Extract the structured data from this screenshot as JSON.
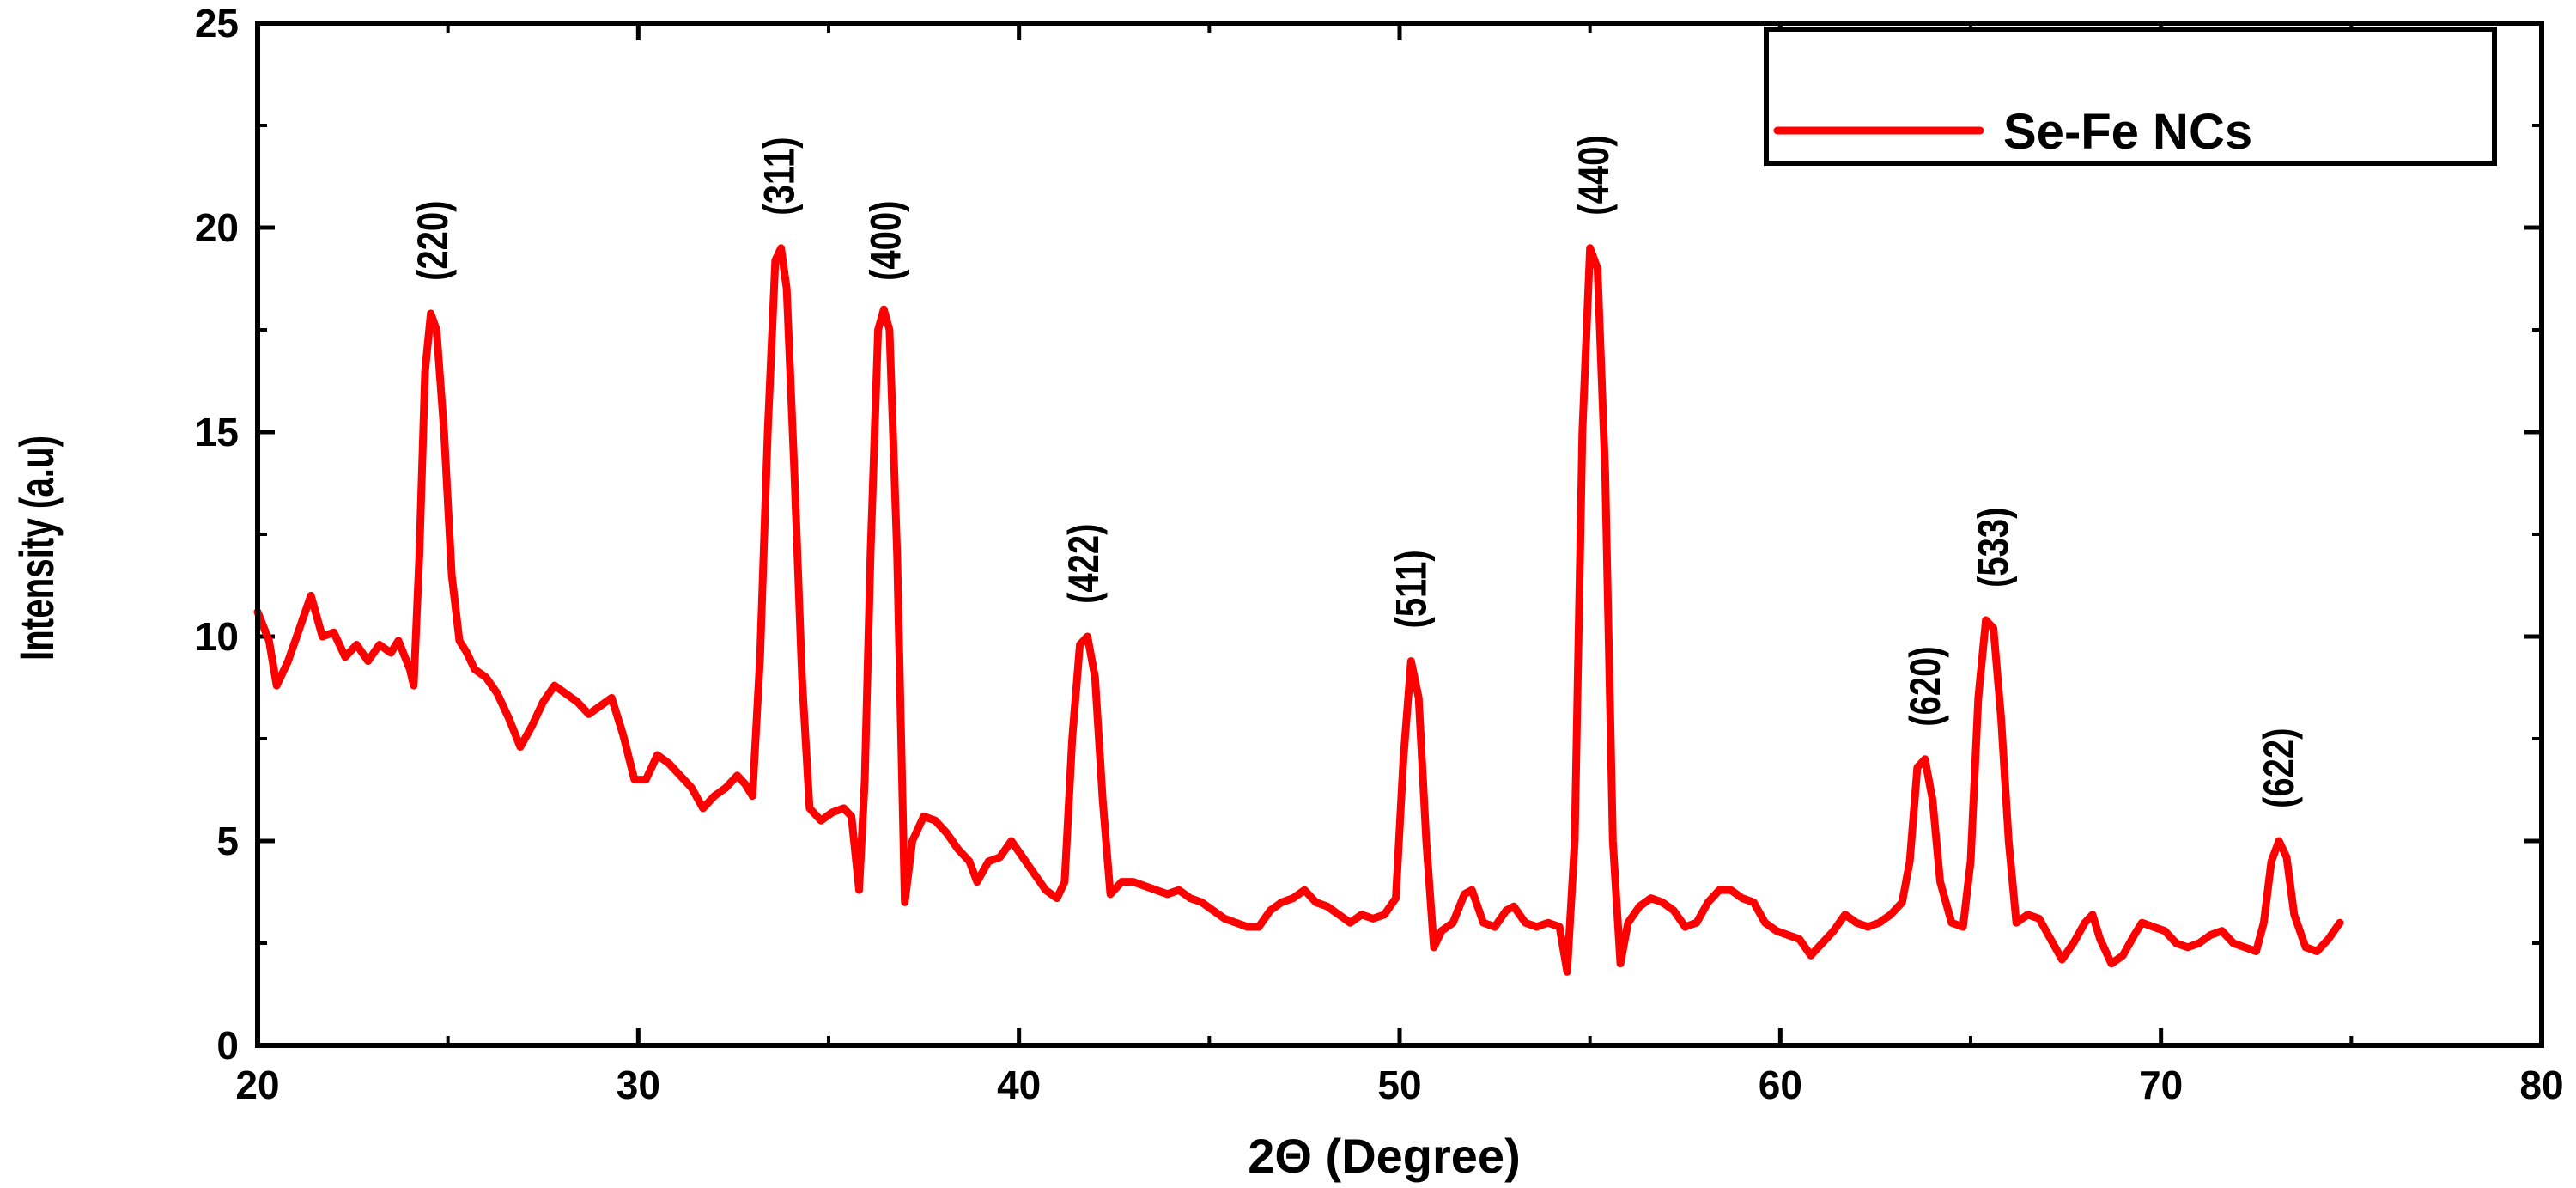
{
  "chart_data": {
    "type": "line",
    "title": "",
    "xlabel": "2Θ (Degree)",
    "ylabel": "Intensity (a.u)",
    "xlim": [
      20,
      80
    ],
    "ylim": [
      0,
      25
    ],
    "xticks": [
      "20",
      "30",
      "40",
      "50",
      "60",
      "70",
      "80"
    ],
    "yticks": [
      "0",
      "5",
      "10",
      "15",
      "20",
      "25"
    ],
    "grid": false,
    "legend": {
      "position": "top-right",
      "entries": [
        "Se-Fe NCs"
      ]
    },
    "series": [
      {
        "name": "Se-Fe NCs",
        "color": "#ff0000",
        "points": [
          [
            20.0,
            10.6
          ],
          [
            20.3,
            9.9
          ],
          [
            20.5,
            8.8
          ],
          [
            20.8,
            9.4
          ],
          [
            21.1,
            10.2
          ],
          [
            21.4,
            11.0
          ],
          [
            21.7,
            10.0
          ],
          [
            22.0,
            10.1
          ],
          [
            22.3,
            9.5
          ],
          [
            22.6,
            9.8
          ],
          [
            22.9,
            9.4
          ],
          [
            23.2,
            9.8
          ],
          [
            23.5,
            9.6
          ],
          [
            23.7,
            9.9
          ],
          [
            24.0,
            9.2
          ],
          [
            24.1,
            8.8
          ],
          [
            24.25,
            12.0
          ],
          [
            24.4,
            16.5
          ],
          [
            24.55,
            17.9
          ],
          [
            24.7,
            17.5
          ],
          [
            24.9,
            15.0
          ],
          [
            25.1,
            11.5
          ],
          [
            25.3,
            9.9
          ],
          [
            25.5,
            9.6
          ],
          [
            25.7,
            9.2
          ],
          [
            26.0,
            9.0
          ],
          [
            26.3,
            8.6
          ],
          [
            26.6,
            8.0
          ],
          [
            26.9,
            7.3
          ],
          [
            27.2,
            7.8
          ],
          [
            27.5,
            8.4
          ],
          [
            27.8,
            8.8
          ],
          [
            28.1,
            8.6
          ],
          [
            28.4,
            8.4
          ],
          [
            28.7,
            8.1
          ],
          [
            29.0,
            8.3
          ],
          [
            29.3,
            8.5
          ],
          [
            29.6,
            7.6
          ],
          [
            29.9,
            6.5
          ],
          [
            30.2,
            6.5
          ],
          [
            30.5,
            7.1
          ],
          [
            30.8,
            6.9
          ],
          [
            31.1,
            6.6
          ],
          [
            31.4,
            6.3
          ],
          [
            31.7,
            5.8
          ],
          [
            32.0,
            6.1
          ],
          [
            32.3,
            6.3
          ],
          [
            32.6,
            6.6
          ],
          [
            32.8,
            6.4
          ],
          [
            33.0,
            6.1
          ],
          [
            33.2,
            9.5
          ],
          [
            33.4,
            15.0
          ],
          [
            33.6,
            19.2
          ],
          [
            33.75,
            19.5
          ],
          [
            33.9,
            18.5
          ],
          [
            34.1,
            14.0
          ],
          [
            34.3,
            9.0
          ],
          [
            34.5,
            5.8
          ],
          [
            34.8,
            5.5
          ],
          [
            35.1,
            5.7
          ],
          [
            35.4,
            5.8
          ],
          [
            35.6,
            5.6
          ],
          [
            35.8,
            3.8
          ],
          [
            35.95,
            6.5
          ],
          [
            36.1,
            12.0
          ],
          [
            36.3,
            17.5
          ],
          [
            36.45,
            18.0
          ],
          [
            36.6,
            17.5
          ],
          [
            36.8,
            12.0
          ],
          [
            37.0,
            3.5
          ],
          [
            37.2,
            5.0
          ],
          [
            37.5,
            5.6
          ],
          [
            37.8,
            5.5
          ],
          [
            38.1,
            5.2
          ],
          [
            38.4,
            4.8
          ],
          [
            38.7,
            4.5
          ],
          [
            38.9,
            4.0
          ],
          [
            39.2,
            4.5
          ],
          [
            39.5,
            4.6
          ],
          [
            39.8,
            5.0
          ],
          [
            40.1,
            4.6
          ],
          [
            40.4,
            4.2
          ],
          [
            40.7,
            3.8
          ],
          [
            41.0,
            3.6
          ],
          [
            41.2,
            4.0
          ],
          [
            41.4,
            7.5
          ],
          [
            41.6,
            9.8
          ],
          [
            41.8,
            10.0
          ],
          [
            42.0,
            9.0
          ],
          [
            42.2,
            6.0
          ],
          [
            42.4,
            3.7
          ],
          [
            42.7,
            4.0
          ],
          [
            43.0,
            4.0
          ],
          [
            43.3,
            3.9
          ],
          [
            43.6,
            3.8
          ],
          [
            43.9,
            3.7
          ],
          [
            44.2,
            3.8
          ],
          [
            44.5,
            3.6
          ],
          [
            44.8,
            3.5
          ],
          [
            45.1,
            3.3
          ],
          [
            45.4,
            3.1
          ],
          [
            45.7,
            3.0
          ],
          [
            46.0,
            2.9
          ],
          [
            46.3,
            2.9
          ],
          [
            46.6,
            3.3
          ],
          [
            46.9,
            3.5
          ],
          [
            47.2,
            3.6
          ],
          [
            47.5,
            3.8
          ],
          [
            47.8,
            3.5
          ],
          [
            48.1,
            3.4
          ],
          [
            48.4,
            3.2
          ],
          [
            48.7,
            3.0
          ],
          [
            49.0,
            3.2
          ],
          [
            49.3,
            3.1
          ],
          [
            49.6,
            3.2
          ],
          [
            49.9,
            3.6
          ],
          [
            50.1,
            7.0
          ],
          [
            50.3,
            9.4
          ],
          [
            50.5,
            8.5
          ],
          [
            50.7,
            5.0
          ],
          [
            50.9,
            2.4
          ],
          [
            51.1,
            2.8
          ],
          [
            51.4,
            3.0
          ],
          [
            51.7,
            3.7
          ],
          [
            51.9,
            3.8
          ],
          [
            52.2,
            3.0
          ],
          [
            52.5,
            2.9
          ],
          [
            52.8,
            3.3
          ],
          [
            53.0,
            3.4
          ],
          [
            53.3,
            3.0
          ],
          [
            53.6,
            2.9
          ],
          [
            53.9,
            3.0
          ],
          [
            54.2,
            2.9
          ],
          [
            54.4,
            1.8
          ],
          [
            54.6,
            5.0
          ],
          [
            54.8,
            15.0
          ],
          [
            55.0,
            19.5
          ],
          [
            55.2,
            19.0
          ],
          [
            55.4,
            14.0
          ],
          [
            55.6,
            5.0
          ],
          [
            55.8,
            2.0
          ],
          [
            56.0,
            3.0
          ],
          [
            56.3,
            3.4
          ],
          [
            56.6,
            3.6
          ],
          [
            56.9,
            3.5
          ],
          [
            57.2,
            3.3
          ],
          [
            57.5,
            2.9
          ],
          [
            57.8,
            3.0
          ],
          [
            58.1,
            3.5
          ],
          [
            58.4,
            3.8
          ],
          [
            58.7,
            3.8
          ],
          [
            59.0,
            3.6
          ],
          [
            59.3,
            3.5
          ],
          [
            59.6,
            3.0
          ],
          [
            59.9,
            2.8
          ],
          [
            60.2,
            2.7
          ],
          [
            60.5,
            2.6
          ],
          [
            60.8,
            2.2
          ],
          [
            61.1,
            2.5
          ],
          [
            61.4,
            2.8
          ],
          [
            61.7,
            3.2
          ],
          [
            62.0,
            3.0
          ],
          [
            62.3,
            2.9
          ],
          [
            62.6,
            3.0
          ],
          [
            62.9,
            3.2
          ],
          [
            63.2,
            3.5
          ],
          [
            63.4,
            4.5
          ],
          [
            63.6,
            6.8
          ],
          [
            63.8,
            7.0
          ],
          [
            64.0,
            6.0
          ],
          [
            64.2,
            4.0
          ],
          [
            64.5,
            3.0
          ],
          [
            64.8,
            2.9
          ],
          [
            65.0,
            4.5
          ],
          [
            65.2,
            8.5
          ],
          [
            65.4,
            10.4
          ],
          [
            65.6,
            10.2
          ],
          [
            65.8,
            8.0
          ],
          [
            66.0,
            5.0
          ],
          [
            66.2,
            3.0
          ],
          [
            66.5,
            3.2
          ],
          [
            66.8,
            3.1
          ],
          [
            67.1,
            2.6
          ],
          [
            67.4,
            2.1
          ],
          [
            67.7,
            2.5
          ],
          [
            68.0,
            3.0
          ],
          [
            68.2,
            3.2
          ],
          [
            68.4,
            2.6
          ],
          [
            68.7,
            2.0
          ],
          [
            69.0,
            2.2
          ],
          [
            69.3,
            2.7
          ],
          [
            69.5,
            3.0
          ],
          [
            69.8,
            2.9
          ],
          [
            70.1,
            2.8
          ],
          [
            70.4,
            2.5
          ],
          [
            70.7,
            2.4
          ],
          [
            71.0,
            2.5
          ],
          [
            71.3,
            2.7
          ],
          [
            71.6,
            2.8
          ],
          [
            71.9,
            2.5
          ],
          [
            72.2,
            2.4
          ],
          [
            72.5,
            2.3
          ],
          [
            72.7,
            3.0
          ],
          [
            72.9,
            4.5
          ],
          [
            73.1,
            5.0
          ],
          [
            73.3,
            4.6
          ],
          [
            73.5,
            3.2
          ],
          [
            73.8,
            2.4
          ],
          [
            74.1,
            2.3
          ],
          [
            74.4,
            2.6
          ],
          [
            74.7,
            3.0
          ]
        ]
      }
    ],
    "annotations": [
      {
        "text": "(220)",
        "x": 24.6,
        "y": 18.7
      },
      {
        "text": "(311)",
        "x": 33.7,
        "y": 20.3
      },
      {
        "text": "(400)",
        "x": 36.5,
        "y": 18.7
      },
      {
        "text": "(422)",
        "x": 41.7,
        "y": 10.8
      },
      {
        "text": "(511)",
        "x": 50.3,
        "y": 10.2
      },
      {
        "text": "(440)",
        "x": 55.1,
        "y": 20.3
      },
      {
        "text": "(620)",
        "x": 63.8,
        "y": 7.8
      },
      {
        "text": "(533)",
        "x": 65.6,
        "y": 11.2
      },
      {
        "text": "(622)",
        "x": 73.1,
        "y": 5.8
      }
    ]
  }
}
